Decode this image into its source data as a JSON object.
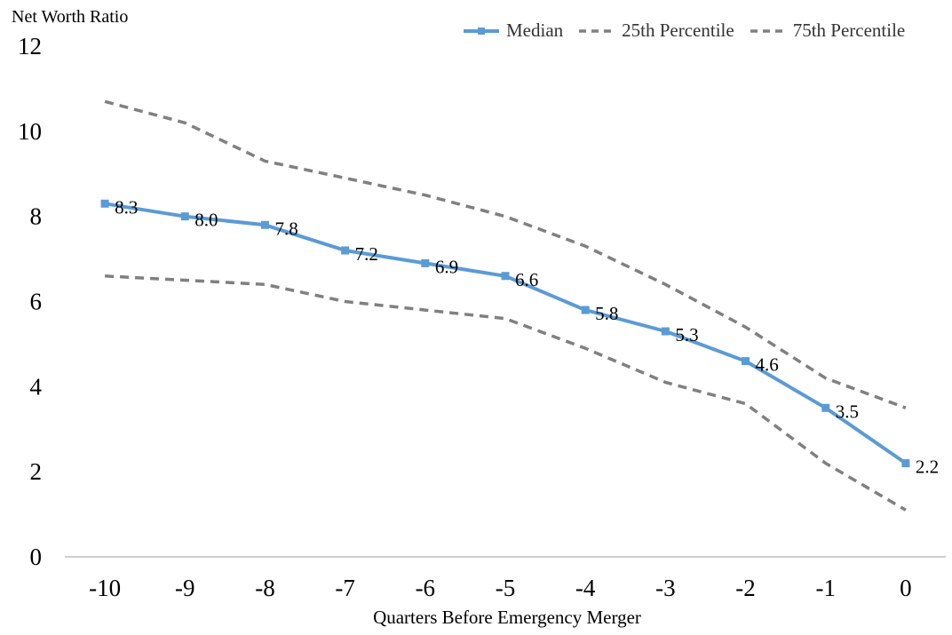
{
  "chart_data": {
    "type": "line",
    "title": "",
    "ylabel": "Net Worth Ratio",
    "xlabel": "Quarters Before Emergency Merger",
    "x": [
      -10,
      -9,
      -8,
      -7,
      -6,
      -5,
      -4,
      -3,
      -2,
      -1,
      0
    ],
    "x_tick_labels": [
      "-10",
      "-9",
      "-8",
      "-7",
      "-6",
      "-5",
      "-4",
      "-3",
      "-2",
      "-1",
      "0"
    ],
    "ylim": [
      0,
      12
    ],
    "y_ticks": [
      0,
      2,
      4,
      6,
      8,
      10,
      12
    ],
    "grid": false,
    "legend_position": "top-right",
    "series": [
      {
        "name": "Median",
        "style": "solid-marker",
        "color": "#5b9bd5",
        "values": [
          8.3,
          8.0,
          7.8,
          7.2,
          6.9,
          6.6,
          5.8,
          5.3,
          4.6,
          3.5,
          2.2
        ],
        "data_labels": [
          "8.3",
          "8.0",
          "7.8",
          "7.2",
          "6.9",
          "6.6",
          "5.8",
          "5.3",
          "4.6",
          "3.5",
          "2.2"
        ]
      },
      {
        "name": "25th Percentile",
        "style": "dashed",
        "color": "#808080",
        "values": [
          6.6,
          6.5,
          6.4,
          6.0,
          5.8,
          5.6,
          4.9,
          4.1,
          3.6,
          2.2,
          1.1
        ]
      },
      {
        "name": "75th Percentile",
        "style": "dashed",
        "color": "#808080",
        "values": [
          10.7,
          10.2,
          9.3,
          8.9,
          8.5,
          8.0,
          7.3,
          6.4,
          5.4,
          4.2,
          3.5
        ]
      }
    ]
  }
}
